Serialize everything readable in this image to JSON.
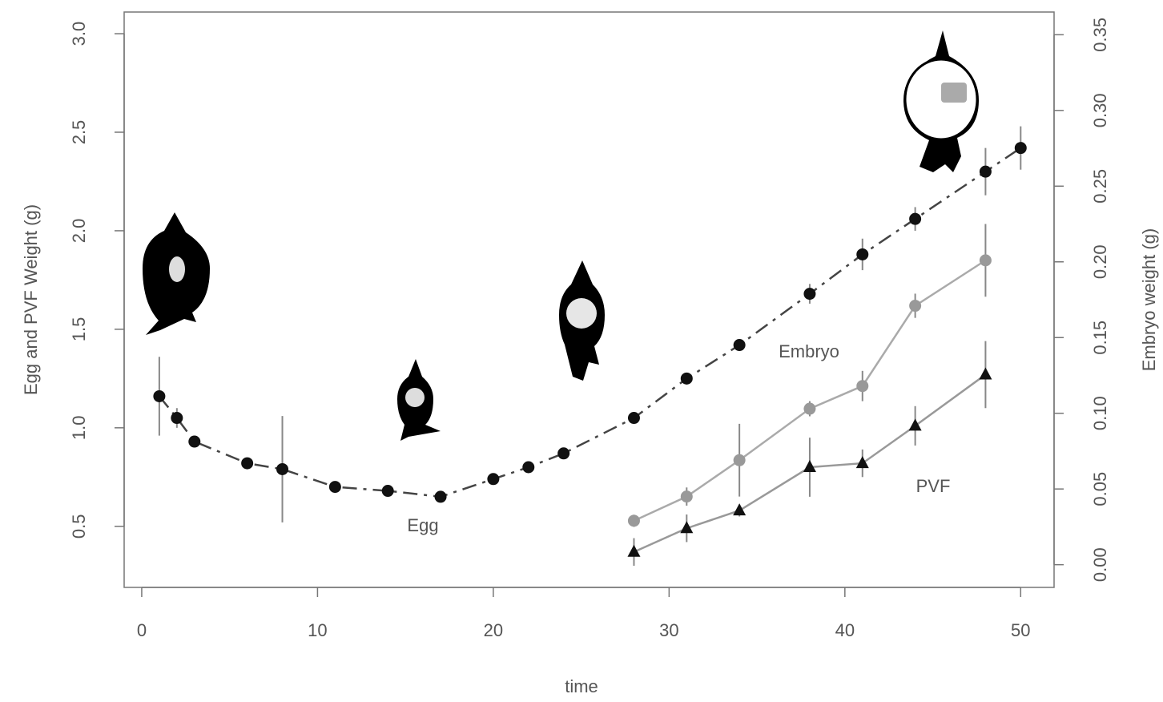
{
  "chart_data": {
    "type": "line",
    "x_label": "time",
    "y_label": "Egg and PVF Weight (g)",
    "y2_label": "Embryo weight (g)",
    "xlim": [
      -1,
      51.9
    ],
    "xticks": [
      0,
      10,
      20,
      30,
      40,
      50
    ],
    "ylim": [
      0.19,
      3.11
    ],
    "yticks": [
      0.5,
      {
        "value": 1,
        "label": "1.0"
      },
      1.5,
      {
        "value": 2,
        "label": "2.0"
      },
      2.5,
      {
        "value": 3,
        "label": "3.0"
      }
    ],
    "y2lim": [
      -0.015,
      0.365
    ],
    "y2ticks": [
      {
        "value": 0,
        "label": "0.00"
      },
      0.05,
      {
        "value": 0.1,
        "label": "0.10"
      },
      0.15,
      {
        "value": 0.2,
        "label": "0.20"
      },
      0.25,
      {
        "value": 0.3,
        "label": "0.30"
      },
      0.35
    ],
    "annotations": [
      "Egg",
      "Embryo",
      "PVF"
    ],
    "series": [
      {
        "name": "Egg",
        "color": "#111111",
        "line_color": "#444444",
        "marker": "circle",
        "line_style": "dashdot",
        "x": [
          1,
          2,
          3,
          6,
          8,
          11,
          14,
          17,
          20,
          22,
          24,
          28,
          31,
          34,
          38,
          41,
          44,
          48,
          50
        ],
        "values": [
          1.16,
          1.05,
          0.93,
          0.82,
          0.79,
          0.7,
          0.68,
          0.65,
          0.74,
          0.8,
          0.87,
          1.05,
          1.25,
          1.42,
          1.68,
          1.88,
          2.06,
          2.3,
          2.42
        ],
        "errors": [
          0.2,
          0.05,
          0.03,
          0.02,
          0.27,
          0.02,
          0.02,
          0.02,
          0.02,
          0.02,
          0.02,
          0.03,
          0.03,
          0.03,
          0.05,
          0.08,
          0.06,
          0.12,
          0.11
        ]
      },
      {
        "name": "Embryo",
        "axis": "y2",
        "color": "#999999",
        "line_color": "#aaaaaa",
        "marker": "circle",
        "line_style": "solid",
        "x": [
          28,
          31,
          34,
          38,
          41,
          44,
          48
        ],
        "values": [
          0.029,
          0.045,
          0.069,
          0.103,
          0.118,
          0.171,
          0.201
        ],
        "errors": [
          0.004,
          0.006,
          0.024,
          0.005,
          0.01,
          0.008,
          0.024
        ]
      },
      {
        "name": "PVF",
        "color": "#111111",
        "line_color": "#999999",
        "marker": "triangle",
        "line_style": "solid",
        "x": [
          28,
          31,
          34,
          38,
          41,
          44,
          48
        ],
        "values": [
          0.37,
          0.49,
          0.58,
          0.8,
          0.82,
          1.01,
          1.27
        ],
        "errors": [
          0.07,
          0.07,
          0.03,
          0.15,
          0.07,
          0.1,
          0.17
        ]
      }
    ]
  }
}
